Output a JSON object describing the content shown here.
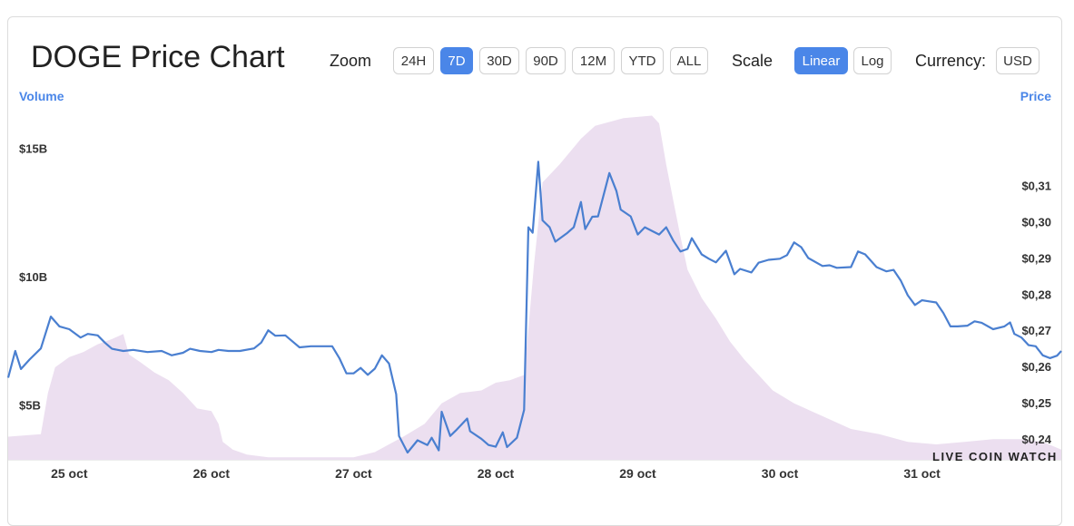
{
  "title": "DOGE Price Chart",
  "zoom": {
    "label": "Zoom",
    "options": [
      "24H",
      "7D",
      "30D",
      "90D",
      "12M",
      "YTD",
      "ALL"
    ],
    "selected": "7D"
  },
  "scale": {
    "label": "Scale",
    "options": [
      "Linear",
      "Log"
    ],
    "selected": "Linear"
  },
  "currency": {
    "label": "Currency:",
    "value": "USD"
  },
  "watermark": "LIVE COIN WATCH",
  "colors": {
    "accent": "#4a86e8",
    "price_line": "#4a7fd0",
    "volume_fill": "#ecdff0"
  },
  "chart_data": {
    "type": "line",
    "left_axis_title": "Volume",
    "right_axis_title": "Price",
    "volume_ticks": [
      "$15B",
      "$10B",
      "$5B"
    ],
    "volume_tick_values": [
      15,
      10,
      5
    ],
    "price_ticks": [
      "$0,31",
      "$0,30",
      "$0,29",
      "$0,28",
      "$0,27",
      "$0,26",
      "$0,25",
      "$0,24"
    ],
    "price_tick_values": [
      0.31,
      0.3,
      0.29,
      0.28,
      0.27,
      0.26,
      0.25,
      0.24
    ],
    "x_ticks": [
      "25 oct",
      "26 oct",
      "27 oct",
      "28 oct",
      "29 oct",
      "30 oct",
      "31 oct"
    ],
    "x_tick_values": [
      25,
      26,
      27,
      28,
      29,
      30,
      31
    ],
    "x_range": [
      24.57,
      31.98
    ],
    "price_range": [
      0.2342,
      0.3315
    ],
    "volume_range": [
      2.9,
      16.6
    ],
    "series": [
      {
        "name": "Price",
        "unit": "USD",
        "points": [
          [
            24.57,
            0.2569
          ],
          [
            24.62,
            0.2643
          ],
          [
            24.66,
            0.2593
          ],
          [
            24.72,
            0.2619
          ],
          [
            24.8,
            0.265
          ],
          [
            24.87,
            0.2738
          ],
          [
            24.93,
            0.2711
          ],
          [
            25.0,
            0.2703
          ],
          [
            25.08,
            0.268
          ],
          [
            25.13,
            0.269
          ],
          [
            25.2,
            0.2686
          ],
          [
            25.25,
            0.2666
          ],
          [
            25.3,
            0.2649
          ],
          [
            25.38,
            0.2643
          ],
          [
            25.45,
            0.2646
          ],
          [
            25.55,
            0.264
          ],
          [
            25.65,
            0.2643
          ],
          [
            25.72,
            0.2631
          ],
          [
            25.8,
            0.2638
          ],
          [
            25.85,
            0.2649
          ],
          [
            25.92,
            0.2643
          ],
          [
            26.0,
            0.264
          ],
          [
            26.05,
            0.2646
          ],
          [
            26.12,
            0.2643
          ],
          [
            26.2,
            0.2643
          ],
          [
            26.3,
            0.265
          ],
          [
            26.35,
            0.2666
          ],
          [
            26.4,
            0.27
          ],
          [
            26.45,
            0.2685
          ],
          [
            26.52,
            0.2686
          ],
          [
            26.55,
            0.2676
          ],
          [
            26.62,
            0.2653
          ],
          [
            26.7,
            0.2656
          ],
          [
            26.78,
            0.2656
          ],
          [
            26.85,
            0.2656
          ],
          [
            26.9,
            0.2623
          ],
          [
            26.95,
            0.2581
          ],
          [
            27.0,
            0.2581
          ],
          [
            27.05,
            0.2596
          ],
          [
            27.1,
            0.2577
          ],
          [
            27.15,
            0.2594
          ],
          [
            27.2,
            0.2631
          ],
          [
            27.25,
            0.2608
          ],
          [
            27.3,
            0.2523
          ],
          [
            27.32,
            0.2408
          ],
          [
            27.38,
            0.2362
          ],
          [
            27.45,
            0.2396
          ],
          [
            27.52,
            0.2383
          ],
          [
            27.55,
            0.2403
          ],
          [
            27.6,
            0.2368
          ],
          [
            27.62,
            0.2475
          ],
          [
            27.68,
            0.2408
          ],
          [
            27.72,
            0.2423
          ],
          [
            27.8,
            0.2456
          ],
          [
            27.82,
            0.2421
          ],
          [
            27.9,
            0.24
          ],
          [
            27.95,
            0.2383
          ],
          [
            28.0,
            0.2378
          ],
          [
            28.05,
            0.2418
          ],
          [
            28.08,
            0.2377
          ],
          [
            28.15,
            0.2403
          ],
          [
            28.2,
            0.248
          ],
          [
            28.23,
            0.2985
          ],
          [
            28.26,
            0.297
          ],
          [
            28.3,
            0.3166
          ],
          [
            28.33,
            0.3004
          ],
          [
            28.38,
            0.2985
          ],
          [
            28.42,
            0.2945
          ],
          [
            28.5,
            0.2968
          ],
          [
            28.55,
            0.2985
          ],
          [
            28.6,
            0.3055
          ],
          [
            28.63,
            0.298
          ],
          [
            28.68,
            0.3014
          ],
          [
            28.72,
            0.3015
          ],
          [
            28.8,
            0.3135
          ],
          [
            28.85,
            0.3085
          ],
          [
            28.88,
            0.3034
          ],
          [
            28.95,
            0.3015
          ],
          [
            29.0,
            0.2965
          ],
          [
            29.05,
            0.2985
          ],
          [
            29.1,
            0.2975
          ],
          [
            29.15,
            0.2965
          ],
          [
            29.2,
            0.2985
          ],
          [
            29.25,
            0.2948
          ],
          [
            29.3,
            0.2918
          ],
          [
            29.35,
            0.2925
          ],
          [
            29.38,
            0.2955
          ],
          [
            29.45,
            0.291
          ],
          [
            29.5,
            0.2898
          ],
          [
            29.55,
            0.2888
          ],
          [
            29.62,
            0.292
          ],
          [
            29.68,
            0.2855
          ],
          [
            29.72,
            0.287
          ],
          [
            29.8,
            0.286
          ],
          [
            29.85,
            0.2887
          ],
          [
            29.92,
            0.2895
          ],
          [
            30.0,
            0.2898
          ],
          [
            30.05,
            0.2908
          ],
          [
            30.1,
            0.2943
          ],
          [
            30.15,
            0.293
          ],
          [
            30.2,
            0.29
          ],
          [
            30.3,
            0.2878
          ],
          [
            30.35,
            0.288
          ],
          [
            30.4,
            0.2873
          ],
          [
            30.5,
            0.2875
          ],
          [
            30.55,
            0.2918
          ],
          [
            30.6,
            0.291
          ],
          [
            30.68,
            0.2875
          ],
          [
            30.75,
            0.2863
          ],
          [
            30.8,
            0.2867
          ],
          [
            30.85,
            0.2838
          ],
          [
            30.9,
            0.2797
          ],
          [
            30.95,
            0.277
          ],
          [
            31.0,
            0.2783
          ],
          [
            31.05,
            0.278
          ],
          [
            31.1,
            0.2777
          ],
          [
            31.15,
            0.2748
          ],
          [
            31.2,
            0.2711
          ],
          [
            31.25,
            0.2711
          ],
          [
            31.32,
            0.2713
          ],
          [
            31.37,
            0.2725
          ],
          [
            31.42,
            0.2721
          ],
          [
            31.5,
            0.2703
          ],
          [
            31.58,
            0.2711
          ],
          [
            31.62,
            0.2722
          ],
          [
            31.65,
            0.269
          ],
          [
            31.7,
            0.268
          ],
          [
            31.75,
            0.2659
          ],
          [
            31.8,
            0.2656
          ],
          [
            31.85,
            0.2631
          ],
          [
            31.9,
            0.2623
          ],
          [
            31.95,
            0.263
          ],
          [
            31.98,
            0.2643
          ]
        ]
      },
      {
        "name": "Volume",
        "unit": "USD (billions)",
        "points": [
          [
            24.57,
            3.8
          ],
          [
            24.8,
            3.9
          ],
          [
            24.85,
            5.5
          ],
          [
            24.9,
            6.5
          ],
          [
            25.0,
            6.9
          ],
          [
            25.1,
            7.1
          ],
          [
            25.2,
            7.4
          ],
          [
            25.3,
            7.6
          ],
          [
            25.38,
            7.8
          ],
          [
            25.42,
            7.0
          ],
          [
            25.5,
            6.7
          ],
          [
            25.6,
            6.3
          ],
          [
            25.7,
            6.0
          ],
          [
            25.8,
            5.5
          ],
          [
            25.9,
            4.9
          ],
          [
            26.0,
            4.8
          ],
          [
            26.05,
            4.3
          ],
          [
            26.08,
            3.6
          ],
          [
            26.15,
            3.3
          ],
          [
            26.25,
            3.1
          ],
          [
            26.4,
            3.0
          ],
          [
            26.6,
            3.0
          ],
          [
            26.8,
            3.0
          ],
          [
            27.0,
            3.0
          ],
          [
            27.15,
            3.2
          ],
          [
            27.25,
            3.5
          ],
          [
            27.35,
            3.8
          ],
          [
            27.5,
            4.3
          ],
          [
            27.62,
            5.1
          ],
          [
            27.75,
            5.5
          ],
          [
            27.9,
            5.6
          ],
          [
            28.0,
            5.9
          ],
          [
            28.1,
            6.0
          ],
          [
            28.2,
            6.2
          ],
          [
            28.23,
            8.0
          ],
          [
            28.27,
            10.5
          ],
          [
            28.33,
            13.7
          ],
          [
            28.45,
            14.4
          ],
          [
            28.6,
            15.4
          ],
          [
            28.7,
            15.9
          ],
          [
            28.9,
            16.2
          ],
          [
            29.1,
            16.3
          ],
          [
            29.15,
            16.0
          ],
          [
            29.2,
            14.4
          ],
          [
            29.25,
            13.0
          ],
          [
            29.3,
            11.6
          ],
          [
            29.35,
            10.3
          ],
          [
            29.45,
            9.2
          ],
          [
            29.55,
            8.4
          ],
          [
            29.65,
            7.5
          ],
          [
            29.75,
            6.8
          ],
          [
            29.85,
            6.2
          ],
          [
            29.95,
            5.6
          ],
          [
            30.1,
            5.1
          ],
          [
            30.3,
            4.6
          ],
          [
            30.5,
            4.1
          ],
          [
            30.7,
            3.9
          ],
          [
            30.9,
            3.6
          ],
          [
            31.1,
            3.5
          ],
          [
            31.3,
            3.6
          ],
          [
            31.5,
            3.7
          ],
          [
            31.7,
            3.7
          ],
          [
            31.85,
            3.6
          ],
          [
            31.98,
            3.3
          ]
        ]
      }
    ]
  }
}
